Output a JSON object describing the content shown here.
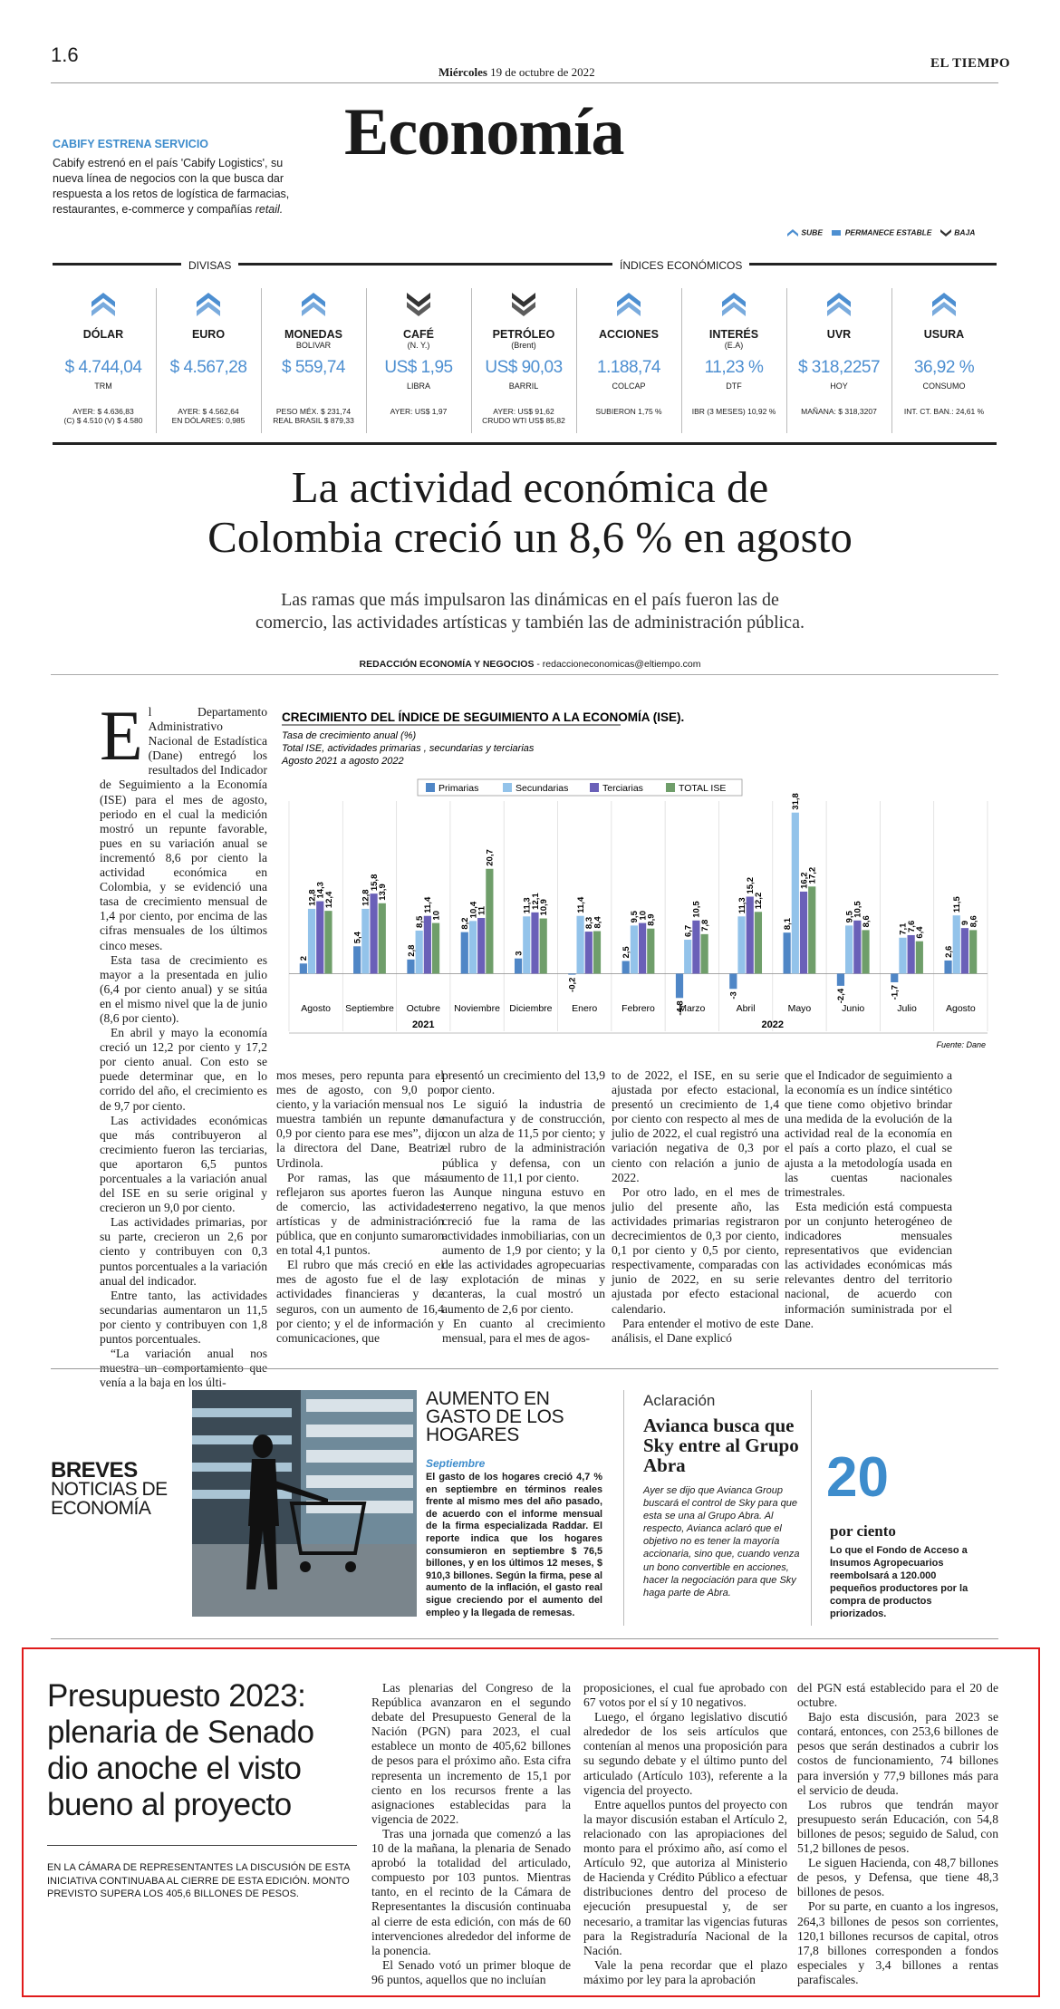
{
  "header": {
    "page_number": "1.6",
    "date_day": "Miércoles",
    "date_rest": "19 de octubre de 2022",
    "brand": "EL TIEMPO",
    "section_title": "Economía"
  },
  "teaser": {
    "kicker": "CABIFY ESTRENA SERVICIO",
    "text_main": "Cabify estrenó en el país 'Cabify Logistics', su nueva línea de negocios con la que busca dar respuesta a los retos de logística de farmacias, restaurantes, e-commerce y compañías",
    "text_italic": "retail."
  },
  "legend_icons": {
    "up": "SUBE",
    "stable": "PERMANECE ESTABLE",
    "down": "BAJA"
  },
  "indicators": {
    "divisas_label": "DIVISAS",
    "indices_label": "ÍNDICES ECONÓMICOS",
    "accent_color": "#4d8fd1",
    "items": [
      {
        "icon": "up-arrow-icon",
        "name": "DÓLAR",
        "sub": "",
        "value": "$ 4.744,04",
        "unit": "TRM",
        "ref1": "AYER: $ 4.636,83",
        "ref2": "(C) $ 4.510 (V) $ 4.580"
      },
      {
        "icon": "up-arrow-icon",
        "name": "EURO",
        "sub": "",
        "value": "$ 4.567,28",
        "unit": "",
        "ref1": "AYER: $ 4.562,64",
        "ref2": "EN DÓLARES: 0,985"
      },
      {
        "icon": "up-arrow-icon",
        "name": "MONEDAS",
        "sub": "BOLIVAR",
        "value": "$ 559,74",
        "unit": "",
        "ref1": "PESO MÉX. $ 231,74",
        "ref2": "REAL BRASIL $ 879,33"
      },
      {
        "icon": "down-arrow-icon",
        "name": "CAFÉ",
        "sub": "(N. Y.)",
        "value": "US$ 1,95",
        "unit": "LIBRA",
        "ref1": "AYER: US$ 1,97",
        "ref2": ""
      },
      {
        "icon": "down-arrow-icon",
        "name": "PETRÓLEO",
        "sub": "(Brent)",
        "value": "US$ 90,03",
        "unit": "BARRIL",
        "ref1": "AYER: US$ 91,62",
        "ref2": "CRUDO WTI US$ 85,82"
      },
      {
        "icon": "up-arrow-icon",
        "name": "ACCIONES",
        "sub": "",
        "value": "1.188,74",
        "unit": "COLCAP",
        "ref1": "SUBIERON 1,75 %",
        "ref2": ""
      },
      {
        "icon": "up-arrow-icon",
        "name": "INTERÉS",
        "sub": "(E.A)",
        "value": "11,23 %",
        "unit": "DTF",
        "ref1": "IBR (3 MESES) 10,92 %",
        "ref2": ""
      },
      {
        "icon": "up-arrow-icon",
        "name": "UVR",
        "sub": "",
        "value": "$ 318,2257",
        "unit": "HOY",
        "ref1": "MAÑANA: $ 318,3207",
        "ref2": ""
      },
      {
        "icon": "up-arrow-icon",
        "name": "USURA",
        "sub": "",
        "value": "36,92 %",
        "unit": "CONSUMO",
        "ref1": "INT. CT. BAN.: 24,61 %",
        "ref2": ""
      }
    ]
  },
  "article": {
    "headline_line1": "La actividad económica de",
    "headline_line2": "Colombia creció un 8,6 % en agosto",
    "deck_line1": "Las ramas que más impulsaron las dinámicas en el país fueron las de",
    "deck_line2": "comercio, las actividades artísticas y también las de administración pública.",
    "byline": "REDACCIÓN ECONOMÍA Y NEGOCIOS",
    "byline_email": "- redaccioneconomicas@eltiempo.com",
    "dropcap": "E",
    "col1_p1": "l Departamento Administrativo Nacional de Estadística (Dane) entregó los resultados del Indicador de Seguimiento a la Economía (ISE) para el mes de agosto, periodo en el cual la medición mostró un repunte favorable, pues en su variación anual se incrementó 8,6 por ciento la actividad económica en Colombia, y se evidenció una tasa de crecimiento mensual de 1,4 por ciento, por encima de las cifras mensuales de los últimos cinco meses.",
    "col1_p2": "Esta tasa de crecimiento es mayor a la presentada en julio (6,4 por ciento anual) y se sitúa en el mismo nivel que la de junio (8,6 por ciento).",
    "col1_p3": "En abril y mayo la economía creció un 12,2 por ciento y 17,2 por ciento anual. Con esto se puede determinar que, en lo corrido del año, el crecimiento es de 9,7 por ciento.",
    "col1_p4": "Las actividades económicas que más contribuyeron al crecimiento fueron las terciarias, que aportaron 6,5 puntos porcentuales a la variación anual del ISE en su serie original y crecieron un 9,0 por ciento.",
    "col1_p5": "Las actividades primarias, por su parte, crecieron un 2,6 por ciento y contribuyen con 0,3 puntos porcentuales a la variación anual del indicador.",
    "col1_p6": "Entre tanto, las actividades secundarias aumentaron un 11,5 por ciento y contribuyen con 1,8 puntos porcentuales.",
    "col1_p7": "“La variación anual nos muestra un comportamiento que venía a la baja en los últi-",
    "col2_p1": "mos meses, pero repunta para el mes de agosto, con 9,0 por ciento, y la variación mensual nos muestra también un repunte de 0,9 por ciento para ese mes”, dijo la directora del Dane, Beatriz Urdinola.",
    "col2_p2": "Por ramas, las que más reflejaron sus aportes fueron las de comercio, las actividades artísticas y de administración pública, que en conjunto sumaron en total 4,1 puntos.",
    "col2_p3": "El rubro que más creció en el mes de agosto fue el de las actividades financieras y de seguros, con un aumento de 16,4 por ciento; y el de información y comunicaciones, que",
    "col3_p1": "presentó un crecimiento del 13,9 por ciento.",
    "col3_p2": "Le siguió la industria de manufactura y de construcción, con un alza de 11,5 por ciento; y el rubro de la administración pública y defensa, con un aumento de 11,1 por ciento.",
    "col3_p3": "Aunque ninguna estuvo en terreno negativo, la que menos creció fue la rama de las actividades inmobiliarias, con un aumento de 1,9 por ciento; y la de las actividades agropecuarias y explotación de minas y canteras, la cual mostró un aumento de 2,6 por ciento.",
    "col3_p4": "En cuanto al crecimiento mensual, para el mes de agos-",
    "col4_p1": "to de 2022, el ISE, en su serie ajustada por efecto estacional, presentó un crecimiento de 1,4 por ciento con respecto al mes de julio de 2022, el cual registró una variación negativa de 0,3 por ciento con relación a junio de 2022.",
    "col4_p2": "Por otro lado, en el mes de julio del presente año, las actividades primarias registraron decrecimientos de 0,3 por ciento, 0,1 por ciento y 0,5 por ciento, respectivamente, comparadas con junio de 2022, en su serie ajustada por efecto estacional calendario.",
    "col4_p3": "Para entender el motivo de este análisis, el Dane explicó",
    "col5_p1": "que el Indicador de seguimiento a la economía es un índice sintético que tiene como objetivo brindar una medida de la evolución de la actividad real de la economía en el país a corto plazo, el cual se ajusta a la metodología usada en las cuentas nacionales trimestrales.",
    "col5_p2": "Esta medición está compuesta por un conjunto heterogéneo de indicadores mensuales representativos que evidencian las actividades económicas más relevantes dentro del territorio nacional, de acuerdo con información suministrada por el Dane."
  },
  "chart_data": {
    "type": "bar",
    "title": "CRECIMIENTO DEL ÍNDICE DE SEGUIMIENTO A LA ECONOMÍA (ISE).",
    "subtitle_line1": "Tasa de crecimiento anual (%)",
    "subtitle_line2": "Total ISE, actividades primarias , secundarias y terciarias",
    "subtitle_line3": "Agosto 2021 a agosto 2022",
    "categories": [
      "Agosto",
      "Septiembre",
      "Octubre",
      "Noviembre",
      "Diciembre",
      "Enero",
      "Febrero",
      "Marzo",
      "Abril",
      "Mayo",
      "Junio",
      "Julio",
      "Agosto"
    ],
    "year_labels": [
      "2021",
      "2022"
    ],
    "series": [
      {
        "name": "Primarias",
        "color": "#4f86c6",
        "values": [
          2.0,
          5.4,
          2.8,
          8.2,
          3,
          -0.2,
          2.5,
          -4.8,
          -3.0,
          8.1,
          -2.4,
          -1.7,
          2.6
        ]
      },
      {
        "name": "Secundarias",
        "color": "#93c3ea",
        "values": [
          12.8,
          12.8,
          8.5,
          10.4,
          11.3,
          11.4,
          9.5,
          6.7,
          11.3,
          31.8,
          9.5,
          7.1,
          11.5
        ]
      },
      {
        "name": "Terciarias",
        "color": "#6a60b8",
        "values": [
          14.3,
          15.8,
          11.4,
          11.0,
          12.1,
          8.3,
          10.0,
          10.5,
          15.2,
          16.2,
          10.5,
          7.6,
          9.0
        ]
      },
      {
        "name": "TOTAL ISE",
        "color": "#6f9e6a",
        "values": [
          12.4,
          13.9,
          10.0,
          20.7,
          10.9,
          8.4,
          8.9,
          7.8,
          12.2,
          17.2,
          8.6,
          6.4,
          8.6
        ]
      }
    ],
    "ylim": [
      -6,
      33
    ],
    "source": "Fuente: Dane"
  },
  "breves": {
    "title_bold": "BREVES",
    "title_line2": "NOTICIAS DE",
    "title_line3": "ECONOMÍA",
    "story1_headline": "AUMENTO EN GASTO DE LOS HOGARES",
    "story1_kicker": "Septiembre",
    "story1_text": "El gasto de los hogares creció 4,7 % en septiembre en términos reales frente al mismo mes del año pasado, de acuerdo con el informe mensual de la firma especializada Raddar. El reporte indica que los hogares consumieron en septiembre $ 76,5 billones, y en los últimos 12 meses, $ 910,3 billones. Según la firma, pese al aumento de la inflación, el gasto real sigue creciendo por el aumento del empleo y la llegada de remesas.",
    "story2_kicker": "Aclaración",
    "story2_headline": "Avianca busca que Sky entre al Grupo Abra",
    "story2_text": "Ayer se dijo que Avianca Group buscará el control de Sky para que esta se una al Grupo Abra. Al respecto, Avianca aclaró que el objetivo no es tener la mayoría accionaria, sino que, cuando venza un bono convertible en acciones, hacer la negociación para que Sky haga parte de Abra.",
    "stat_number": "20",
    "stat_unit": "por ciento",
    "stat_text": "Lo que el Fondo de Acceso a Insumos Agropecuarios reembolsará a 120.000 pequeños productores por la compra de productos priorizados."
  },
  "budget": {
    "headline": "Presupuesto 2023: plenaria de Senado dio anoche el visto bueno al proyecto",
    "summary": "EN LA CÁMARA DE REPRESENTANTES LA DISCUSIÓN DE ESTA INICIATIVA CONTINUABA AL CIERRE DE ESTA EDICIÓN. MONTO PREVISTO SUPERA LOS 405,6 BILLONES DE PESOS.",
    "col1_p1": "Las plenarias del Congreso de la República avanzaron en el segundo debate del Presupuesto General de la Nación (PGN) para 2023, el cual establece un monto de 405,62 billones de pesos para el próximo año. Esta cifra representa un incremento de 15,1 por ciento en los recursos frente a las asignaciones establecidas para la vigencia de 2022.",
    "col1_p2": "Tras una jornada que comenzó a las 10 de la mañana, la plenaria de Senado aprobó la totalidad del articulado, compuesto por 103 puntos. Mientras tanto, en el recinto de la Cámara de Representantes la discusión continuaba al cierre de esta edición, con más de 60 intervenciones alrededor del informe de la ponencia.",
    "col1_p3": "El Senado votó un primer bloque de 96 puntos, aquellos que no incluían",
    "col2_p1": "proposiciones, el cual fue aprobado con 67 votos por el sí y 10 negativos.",
    "col2_p2": "Luego, el órgano legislativo discutió alrededor de los seis artículos que contenían al menos una proposición para su segundo debate y el último punto del articulado (Artículo 103), referente a la vigencia del proyecto.",
    "col2_p3": "Entre aquellos puntos del proyecto con la mayor discusión estaban el Artículo 2, relacionado con las apropiaciones del monto para el próximo año, así como el Artículo 92, que autoriza al Ministerio de Hacienda y Crédito Público a efectuar distribuciones dentro del proceso de ejecución presupuestal y, de ser necesario, a tramitar las vigencias futuras para la Registraduría Nacional de la Nación.",
    "col2_p4": "Vale la pena recordar que el plazo máximo por ley para la aprobación",
    "col3_p1": "del PGN está establecido para el 20 de octubre.",
    "col3_p2": "Bajo esta discusión, para 2023 se contará, entonces, con 253,6 billones de pesos que serán destinados a cubrir los costos de funcionamiento, 74 billones para inversión y 77,9 billones más para el servicio de deuda.",
    "col3_p3": "Los rubros que tendrán mayor presupuesto serán Educación, con 54,8 billones de pesos; seguido de Salud, con 51,2 billones de pesos.",
    "col3_p4": "Le siguen Hacienda, con 48,7 billones de pesos, y Defensa, que tiene 48,3 billones de pesos.",
    "col3_p5": "Por su parte, en cuanto a los ingresos, 264,3 billones de pesos son corrientes, 120,1 billones recursos de capital, otros 17,8 billones corresponden a fondos especiales y 3,4 billones a rentas parafiscales.",
    "highlight_color": "#e01b1b"
  }
}
